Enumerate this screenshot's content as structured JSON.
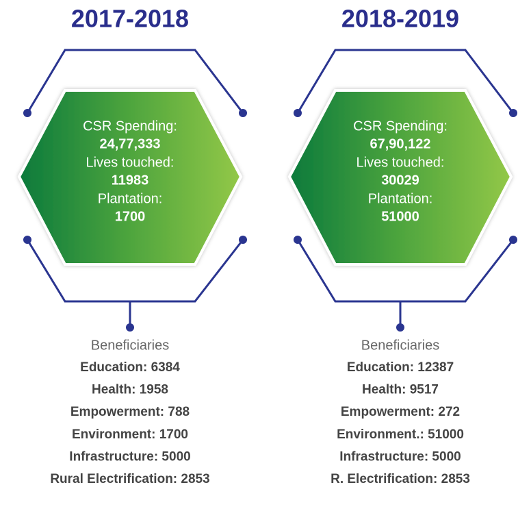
{
  "panels": [
    {
      "year": "2017-2018",
      "stats": [
        {
          "label": "CSR Spending:",
          "value": "24,77,333"
        },
        {
          "label": "Lives touched:",
          "value": "11983"
        },
        {
          "label": "Plantation:",
          "value": "1700"
        }
      ],
      "beneficiaries_title": "Beneficiaries",
      "beneficiaries": [
        "Education: 6384",
        "Health: 1958",
        "Empowerment: 788",
        "Environment: 1700",
        "Infrastructure: 5000",
        "Rural Electrification: 2853"
      ]
    },
    {
      "year": "2018-2019",
      "stats": [
        {
          "label": "CSR Spending:",
          "value": "67,90,122"
        },
        {
          "label": "Lives touched:",
          "value": "30029"
        },
        {
          "label": "Plantation:",
          "value": "51000"
        }
      ],
      "beneficiaries_title": "Beneficiaries",
      "beneficiaries": [
        "Education: 12387",
        "Health: 9517",
        "Empowerment: 272",
        "Environment.: 51000",
        "Infrastructure: 5000",
        "R. Electrification: 2853"
      ]
    }
  ]
}
